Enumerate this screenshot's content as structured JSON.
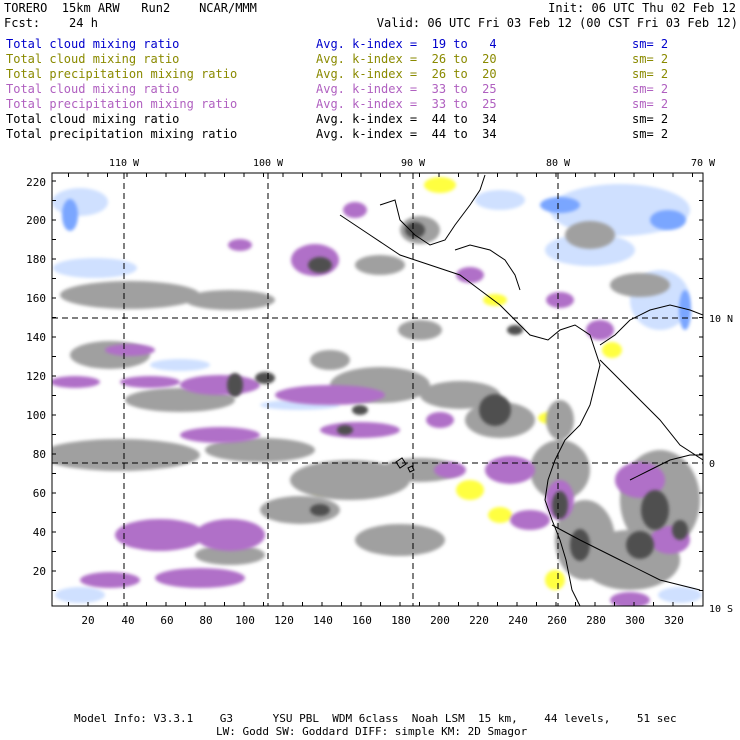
{
  "header": {
    "line1_left": "TORERO  15km ARW   Run2    NCAR/MMM",
    "line1_right": "Init: 06 UTC Thu 02 Feb 12",
    "line2_left": "Fcst:    24 h",
    "line2_right": "Valid: 06 UTC Fri 03 Feb 12 (00 CST Fri 03 Feb 12)"
  },
  "fields": [
    {
      "name": "Total cloud mixing ratio",
      "stat": "Avg. k-index =  19 to   4",
      "sm": "sm= 2",
      "color": "#0000cc"
    },
    {
      "name": "Total cloud mixing ratio",
      "stat": "Avg. k-index =  26 to  20",
      "sm": "sm= 2",
      "color": "#8a8a00"
    },
    {
      "name": "Total precipitation mixing ratio",
      "stat": "Avg. k-index =  26 to  20",
      "sm": "sm= 2",
      "color": "#8a8a00"
    },
    {
      "name": "Total cloud mixing ratio",
      "stat": "Avg. k-index =  33 to  25",
      "sm": "sm= 2",
      "color": "#b060c0"
    },
    {
      "name": "Total precipitation mixing ratio",
      "stat": "Avg. k-index =  33 to  25",
      "sm": "sm= 2",
      "color": "#b060c0"
    },
    {
      "name": "Total cloud mixing ratio",
      "stat": "Avg. k-index =  44 to  34",
      "sm": "sm= 2",
      "color": "#000000"
    },
    {
      "name": "Total precipitation mixing ratio",
      "stat": "Avg. k-index =  44 to  34",
      "sm": "sm= 2",
      "color": "#000000"
    }
  ],
  "axes": {
    "top_lon": [
      "110 W",
      "100 W",
      "90 W",
      "80 W",
      "70 W"
    ],
    "right_lat": [
      "10 N",
      "0",
      "10 S"
    ],
    "left_y": [
      "220",
      "200",
      "180",
      "160",
      "140",
      "120",
      "100",
      "80",
      "60",
      "40",
      "20"
    ],
    "bottom_x": [
      "20",
      "40",
      "60",
      "80",
      "100",
      "120",
      "140",
      "160",
      "180",
      "200",
      "220",
      "240",
      "260",
      "280",
      "300",
      "320"
    ]
  },
  "footer": {
    "line1": "Model Info: V3.3.1    G3      YSU PBL  WDM 6class  Noah LSM  15 km,    44 levels,    51 sec",
    "line2": "LW: Godd SW: Goddard DIFF: simple KM: 2D Smagor"
  }
}
